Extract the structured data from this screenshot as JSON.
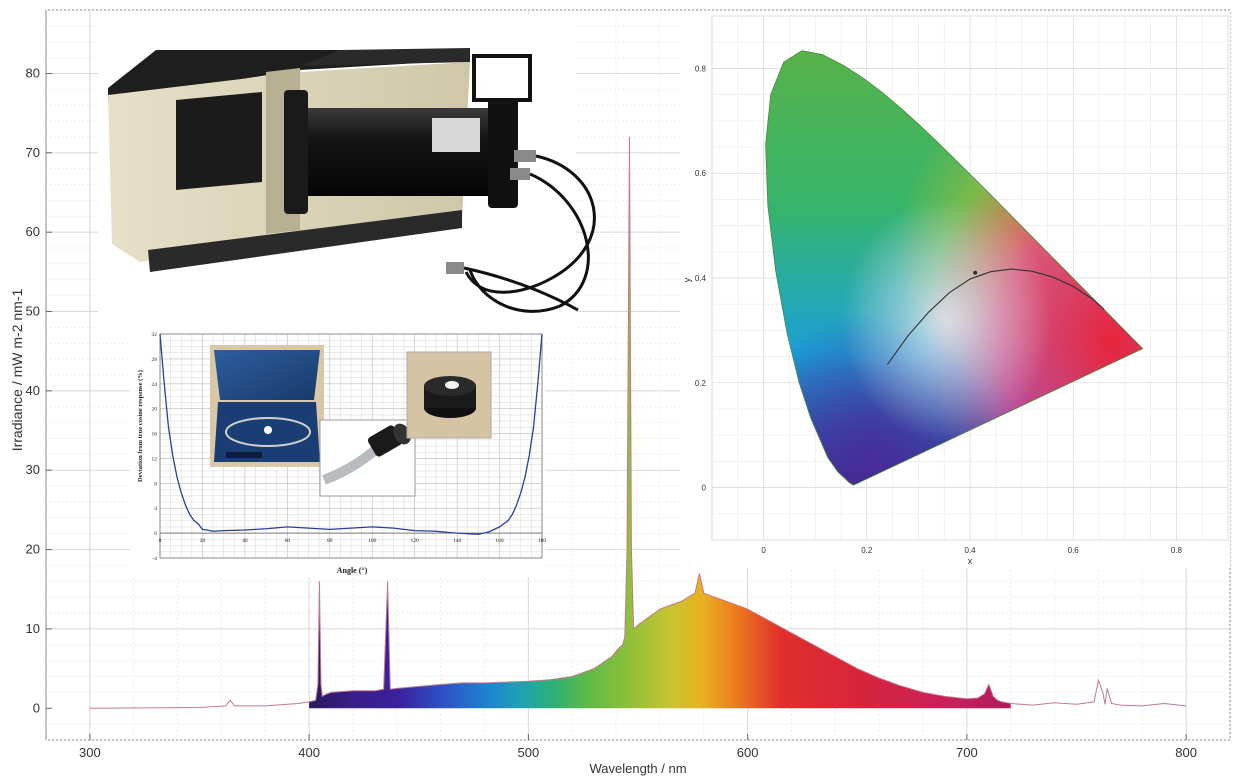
{
  "chart_data": [
    {
      "type": "area",
      "xlabel": "Wavelength / nm",
      "ylabel": "Irradiance / mW m-2 nm-1",
      "xlim": [
        280,
        820
      ],
      "ylim": [
        -4,
        88
      ],
      "x_ticks": [
        300,
        400,
        500,
        600,
        700,
        800
      ],
      "y_ticks": [
        0,
        10,
        20,
        30,
        40,
        50,
        60,
        70,
        80
      ],
      "grid": true,
      "series": [
        {
          "x": [
            300,
            350,
            362,
            364,
            366,
            380,
            395,
            400,
            403,
            404,
            404.7,
            405.4,
            406,
            408,
            410,
            420,
            430,
            434,
            435.8,
            437,
            440,
            460,
            470,
            480,
            490,
            500,
            510,
            520,
            530,
            538,
            541,
            543,
            544,
            545,
            546.1,
            547,
            548,
            550,
            555,
            560,
            570,
            574,
            576,
            578,
            580,
            582,
            590,
            600,
            610,
            620,
            630,
            640,
            650,
            660,
            670,
            680,
            690,
            700,
            705,
            708,
            710,
            712,
            714,
            716,
            720,
            730,
            740,
            750,
            758,
            760,
            762,
            763,
            764,
            766,
            770,
            780,
            790,
            800
          ],
          "y": [
            0,
            0.1,
            0.3,
            1.0,
            0.3,
            0.3,
            0.6,
            0.8,
            1.0,
            3.0,
            16.0,
            3.0,
            1.5,
            1.8,
            2.0,
            2.2,
            2.2,
            2.4,
            16.0,
            2.4,
            2.5,
            3.0,
            3.2,
            3.2,
            3.3,
            3.4,
            3.6,
            4.0,
            5.0,
            6.5,
            7.5,
            8.0,
            9.0,
            20.0,
            72.0,
            20.0,
            10.0,
            10.5,
            11.5,
            12.5,
            13.5,
            14.2,
            14.5,
            17.0,
            14.5,
            14.3,
            13.5,
            12.5,
            11.0,
            9.5,
            8.0,
            6.5,
            5.0,
            3.8,
            2.8,
            2.0,
            1.5,
            1.2,
            1.3,
            1.8,
            3.0,
            1.5,
            1.0,
            0.8,
            0.6,
            0.4,
            0.7,
            0.5,
            0.8,
            3.5,
            2.0,
            0.5,
            2.5,
            0.6,
            0.4,
            0.3,
            0.6,
            0.3
          ]
        }
      ]
    },
    {
      "type": "line",
      "xlabel": "Angle (°)",
      "ylabel": "Deviation from true cosine response (%)",
      "xlim": [
        0,
        180
      ],
      "ylim": [
        -4,
        32
      ],
      "x_ticks": [
        0,
        20,
        40,
        60,
        80,
        100,
        120,
        140,
        160,
        180
      ],
      "y_ticks": [
        -4,
        0,
        4,
        8,
        12,
        16,
        20,
        24,
        28,
        32
      ],
      "grid": true,
      "series": [
        {
          "x": [
            0,
            2,
            4,
            6,
            8,
            10,
            12,
            14,
            16,
            18,
            20,
            22,
            25,
            30,
            40,
            50,
            60,
            70,
            80,
            90,
            100,
            110,
            120,
            130,
            140,
            150,
            155,
            160,
            162,
            164,
            166,
            168,
            170,
            172,
            174,
            176,
            178,
            180
          ],
          "y": [
            33,
            24,
            17,
            12.5,
            9,
            6.5,
            4.5,
            3,
            2,
            1.5,
            0.6,
            0.5,
            0.3,
            0.4,
            0.5,
            0.7,
            1.0,
            0.8,
            0.6,
            0.8,
            1.0,
            0.8,
            0.4,
            0.3,
            0,
            -0.2,
            0.2,
            1.0,
            1.5,
            2.0,
            3.0,
            4.5,
            6.5,
            9,
            12.5,
            17,
            24,
            33
          ]
        }
      ]
    },
    {
      "type": "line",
      "xlabel": "x",
      "ylabel": "y",
      "xlim": [
        -0.1,
        0.9
      ],
      "ylim": [
        -0.1,
        0.9
      ],
      "x_ticks": [
        0,
        0.2,
        0.4,
        0.6,
        0.8
      ],
      "y_ticks": [
        0,
        0.2,
        0.4,
        0.6,
        0.8
      ],
      "grid": true,
      "series": [
        {
          "x": [
            0.175,
            0.1738,
            0.1666,
            0.1579,
            0.144,
            0.1241,
            0.0913,
            0.0687,
            0.0454,
            0.0235,
            0.0082,
            0.0039,
            0.0139,
            0.0389,
            0.0743,
            0.1142,
            0.1547,
            0.1929,
            0.2296,
            0.2658,
            0.3016,
            0.3373,
            0.3731,
            0.4087,
            0.4441,
            0.4788,
            0.5125,
            0.5448,
            0.5752,
            0.6029,
            0.627,
            0.6482,
            0.6658,
            0.6801,
            0.6915,
            0.7006,
            0.7347
          ],
          "y": [
            0.005,
            0.005,
            0.0089,
            0.0172,
            0.0297,
            0.0578,
            0.1327,
            0.2007,
            0.295,
            0.4127,
            0.5384,
            0.6548,
            0.7502,
            0.812,
            0.8338,
            0.8262,
            0.8059,
            0.7816,
            0.7543,
            0.7243,
            0.6923,
            0.6589,
            0.6245,
            0.5896,
            0.5547,
            0.5202,
            0.4866,
            0.4544,
            0.4242,
            0.3965,
            0.3725,
            0.3514,
            0.334,
            0.3197,
            0.3083,
            0.2993,
            0.2653
          ]
        },
        {
          "x": [
            0.24,
            0.28,
            0.32,
            0.36,
            0.4,
            0.44,
            0.48,
            0.52,
            0.56,
            0.6,
            0.64,
            0.66
          ],
          "y": [
            0.235,
            0.29,
            0.335,
            0.372,
            0.398,
            0.412,
            0.417,
            0.413,
            0.402,
            0.384,
            0.358,
            0.34
          ]
        }
      ],
      "point": [
        0.41,
        0.41
      ]
    }
  ]
}
